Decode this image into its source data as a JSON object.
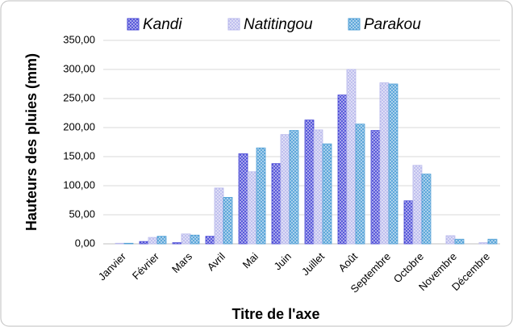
{
  "chart_data": {
    "type": "bar",
    "y_label": "Hauteurs des pluies (mm)",
    "x_label": "Titre de l'axe",
    "categories": [
      "Janvier",
      "Février",
      "Mars",
      "Avril",
      "Mai",
      "Juin",
      "Juillet",
      "Août",
      "Septembre",
      "Octobre",
      "Novembre",
      "Décembre"
    ],
    "series": [
      {
        "name": "Kandi",
        "color": "#4a4ad6",
        "values": [
          0,
          4,
          2,
          13,
          155,
          138,
          213,
          256,
          195,
          74,
          0,
          0
        ]
      },
      {
        "name": "Natitingou",
        "color": "#b9b9ec",
        "values": [
          1,
          11,
          17,
          96,
          124,
          188,
          196,
          300,
          277,
          135,
          14,
          2
        ]
      },
      {
        "name": "Parakou",
        "color": "#4f9fd6",
        "values": [
          1,
          13,
          15,
          80,
          165,
          195,
          172,
          206,
          275,
          120,
          8,
          8
        ]
      }
    ],
    "ylim": [
      0,
      350
    ],
    "yticks": [
      {
        "value": 0,
        "label": "0,00"
      },
      {
        "value": 50,
        "label": "50,00"
      },
      {
        "value": 100,
        "label": "100,00"
      },
      {
        "value": 150,
        "label": "150,00"
      },
      {
        "value": 200,
        "label": "200,00"
      },
      {
        "value": 250,
        "label": "250,00"
      },
      {
        "value": 300,
        "label": "300,00"
      },
      {
        "value": 350,
        "label": "350,00"
      }
    ],
    "grid": true,
    "legend": "top"
  }
}
